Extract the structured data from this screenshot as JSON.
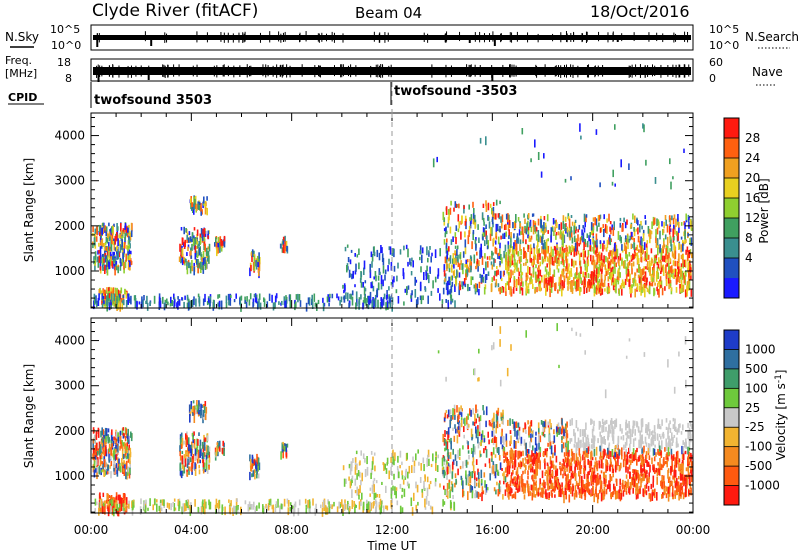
{
  "header": {
    "title": "Clyde River (fitACF)",
    "beam": "Beam 04",
    "date": "18/Oct/2016"
  },
  "strips": {
    "nsky_label": "N.Sky",
    "nsky_ticks": [
      "10^5",
      "10^0"
    ],
    "nsearch_label": "N.Search",
    "nsearch_ticks": [
      "10^5",
      "10^0"
    ],
    "freq_label_1": "Freq.",
    "freq_label_2": "[MHz]",
    "freq_ticks": [
      "18",
      "8"
    ],
    "nave_label": "Nave",
    "nave_ticks": [
      "60",
      "0"
    ],
    "cpid_label": "CPID",
    "cpid_segments": [
      "twofsound 3503",
      "twofsound -3503"
    ]
  },
  "chart_data": [
    {
      "type": "heatmap",
      "name": "power-panel",
      "xlabel": "Time UT",
      "ylabel": "Slant Range [km]",
      "x_ticks": [
        "00:00",
        "04:00",
        "08:00",
        "12:00",
        "16:00",
        "20:00",
        "00:00"
      ],
      "xlim_hours": [
        0,
        24
      ],
      "ylim": [
        180,
        4500
      ],
      "y_ticks": [
        1000,
        2000,
        3000,
        4000
      ],
      "colorbar": {
        "label": "Power [dB]",
        "ticks": [
          4,
          8,
          12,
          16,
          20,
          24,
          28
        ],
        "range": [
          0,
          32
        ],
        "colors": [
          "#1a1aff",
          "#2050c0",
          "#3a8f8f",
          "#40a060",
          "#8fcf30",
          "#e8d020",
          "#f0a020",
          "#ff6010",
          "#ff1a10"
        ]
      }
    },
    {
      "type": "heatmap",
      "name": "velocity-panel",
      "xlabel": "Time UT",
      "ylabel": "Slant Range [km]",
      "x_ticks": [
        "00:00",
        "04:00",
        "08:00",
        "12:00",
        "16:00",
        "20:00",
        "00:00"
      ],
      "xlim_hours": [
        0,
        24
      ],
      "ylim": [
        180,
        4500
      ],
      "y_ticks": [
        1000,
        2000,
        3000,
        4000
      ],
      "colorbar": {
        "label": "Velocity [m s-1]",
        "ticks": [
          1000,
          500,
          100,
          25,
          -25,
          -100,
          -500,
          -1000
        ],
        "colors": [
          "#1e3cc8",
          "#2f6fa0",
          "#3f9d6a",
          "#6ec93c",
          "#c8c8c8",
          "#f2b431",
          "#f58a1f",
          "#ff5a10",
          "#ff1a10"
        ]
      }
    }
  ]
}
